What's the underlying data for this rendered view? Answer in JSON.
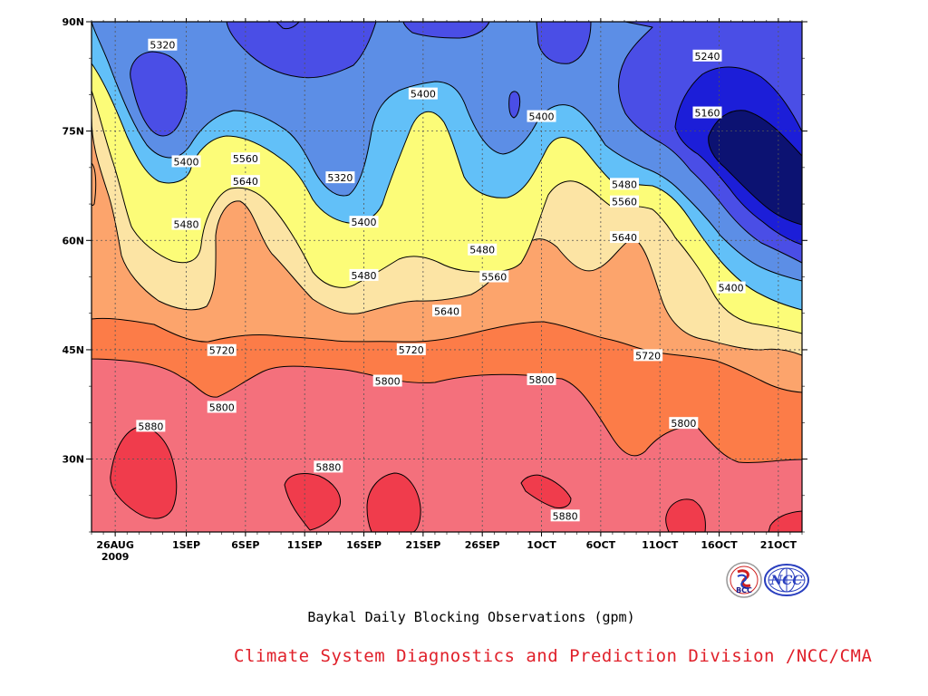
{
  "chart_data": {
    "type": "heatmap",
    "subtype": "filled-contour (Hovmoller time-latitude)",
    "title": "Baykal Daily Blocking Observations (gpm)",
    "units": "gpm",
    "x_axis": {
      "tick_labels": [
        "26AUG",
        "1SEP",
        "6SEP",
        "11SEP",
        "16SEP",
        "21SEP",
        "26SEP",
        "1OCT",
        "6OCT",
        "11OCT",
        "16OCT",
        "21OCT"
      ],
      "year_label": "2009",
      "range": [
        "2009-08-24",
        "2009-10-23"
      ]
    },
    "y_axis": {
      "tick_labels": [
        "30N",
        "45N",
        "60N",
        "75N",
        "90N"
      ],
      "tick_values": [
        30,
        45,
        60,
        75,
        90
      ],
      "range": [
        20,
        90
      ]
    },
    "grid": "dotted",
    "contour_levels": [
      5160,
      5240,
      5320,
      5400,
      5480,
      5560,
      5640,
      5720,
      5800,
      5880
    ],
    "fill_colors": [
      "#0c1272",
      "#1c1ed8",
      "#4a4ee6",
      "#5c8ee6",
      "#62c0f8",
      "#fcfc78",
      "#fce4a4",
      "#fca46c",
      "#fc7c48",
      "#f4707c",
      "#f03c4c"
    ],
    "contour_labels": [
      {
        "value": "5320",
        "date": "2009-08-30",
        "lat": 86.8
      },
      {
        "value": "5400",
        "date": "2009-09-01",
        "lat": 70.8
      },
      {
        "value": "5480",
        "date": "2009-09-01",
        "lat": 62.2
      },
      {
        "value": "5560",
        "date": "2009-09-06",
        "lat": 71.2
      },
      {
        "value": "5640",
        "date": "2009-09-06",
        "lat": 68.1
      },
      {
        "value": "5320",
        "date": "2009-09-14",
        "lat": 68.6
      },
      {
        "value": "5400",
        "date": "2009-09-16",
        "lat": 62.5
      },
      {
        "value": "5480",
        "date": "2009-09-16",
        "lat": 55.2
      },
      {
        "value": "5400",
        "date": "2009-09-21",
        "lat": 80.1
      },
      {
        "value": "5480",
        "date": "2009-09-26",
        "lat": 58.7
      },
      {
        "value": "5560",
        "date": "2009-09-27",
        "lat": 55.0
      },
      {
        "value": "5400",
        "date": "2009-10-01",
        "lat": 77.0
      },
      {
        "value": "5480",
        "date": "2009-10-08",
        "lat": 67.7
      },
      {
        "value": "5560",
        "date": "2009-10-08",
        "lat": 65.3
      },
      {
        "value": "5640",
        "date": "2009-10-08",
        "lat": 60.4
      },
      {
        "value": "5240",
        "date": "2009-10-15",
        "lat": 85.3
      },
      {
        "value": "5160",
        "date": "2009-10-15",
        "lat": 77.5
      },
      {
        "value": "5400",
        "date": "2009-10-17",
        "lat": 53.5
      },
      {
        "value": "5720",
        "date": "2009-09-04",
        "lat": 44.9
      },
      {
        "value": "5720",
        "date": "2009-09-20",
        "lat": 45.0
      },
      {
        "value": "5720",
        "date": "2009-10-10",
        "lat": 44.2
      },
      {
        "value": "5800",
        "date": "2009-09-04",
        "lat": 37.1
      },
      {
        "value": "5800",
        "date": "2009-09-18",
        "lat": 40.7
      },
      {
        "value": "5800",
        "date": "2009-10-01",
        "lat": 40.9
      },
      {
        "value": "5800",
        "date": "2009-10-13",
        "lat": 34.9
      },
      {
        "value": "5640",
        "date": "2009-09-23",
        "lat": 50.3
      },
      {
        "value": "5880",
        "date": "2009-08-29",
        "lat": 34.5
      },
      {
        "value": "5880",
        "date": "2009-09-13",
        "lat": 28.9
      },
      {
        "value": "5880",
        "date": "2009-10-03",
        "lat": 22.2
      }
    ]
  },
  "caption": "Baykal Daily Blocking Observations (gpm)",
  "credit": "Climate System Diagnostics and Prediction Division /NCC/CMA",
  "logos": {
    "left_text": "BCC",
    "right_text": "NCC",
    "right_color": "#2a3fbf"
  }
}
